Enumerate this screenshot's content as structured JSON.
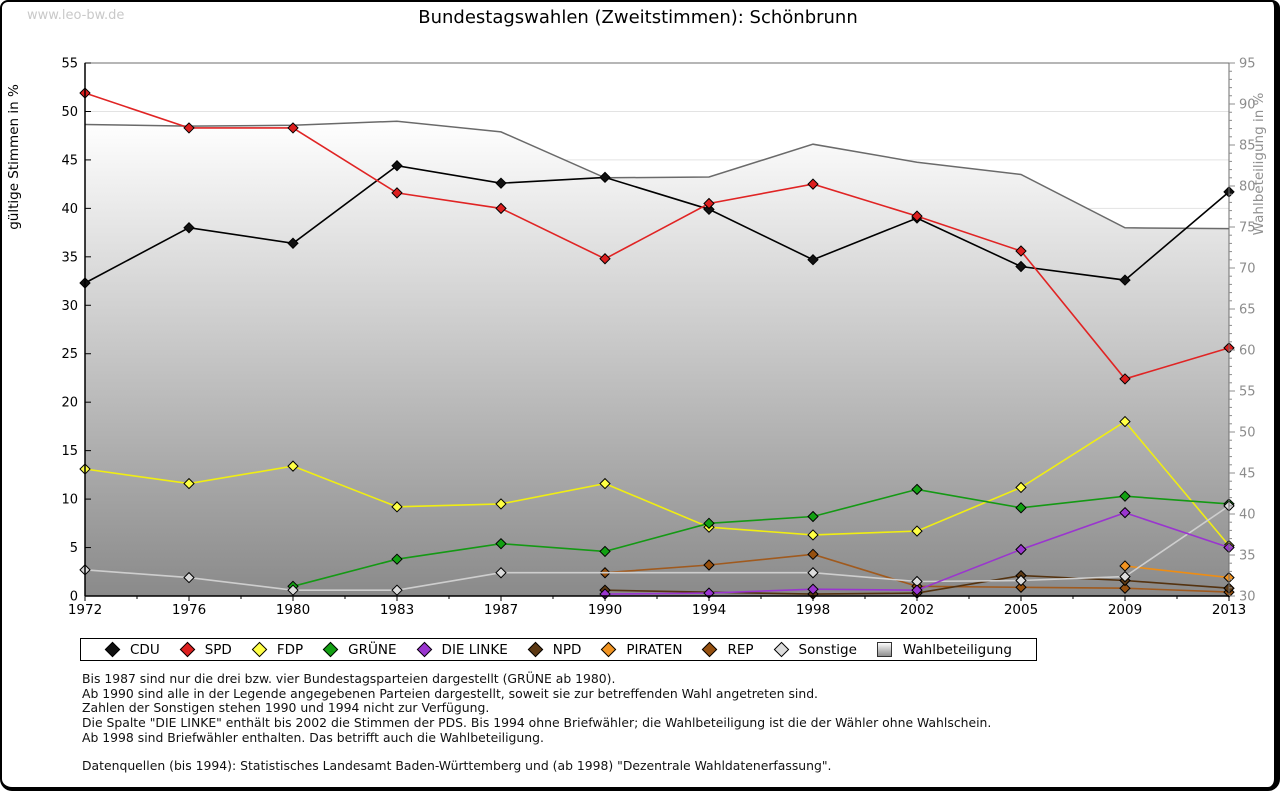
{
  "page": {
    "watermark": "www.leo-bw.de",
    "title": "Bundestagswahlen (Zweitstimmen): Schönbrunn"
  },
  "footnotes": [
    "Bis 1987 sind nur die drei bzw. vier Bundestagsparteien dargestellt (GRÜNE ab 1980).",
    "Ab 1990 sind alle in der Legende angegebenen Parteien dargestellt, soweit sie zur betreffenden Wahl angetreten sind.",
    "Zahlen der Sonstigen stehen 1990 und 1994 nicht zur Verfügung.",
    "Die Spalte \"DIE LINKE\" enthält bis 2002 die Stimmen der PDS. Bis 1994 ohne Briefwähler; die Wahlbeteiligung ist die der Wähler ohne Wahlschein.",
    "Ab 1998 sind Briefwähler enthalten. Das betrifft auch die Wahlbeteiligung."
  ],
  "datasource": "Datenquellen (bis 1994): Statistisches Landesamt Baden-Württemberg und (ab 1998) \"Dezentrale Wahldatenerfassung\".",
  "chart_data": {
    "type": "line",
    "title": "Bundestagswahlen (Zweitstimmen): Schönbrunn",
    "categories": [
      "1972",
      "1976",
      "1980",
      "1983",
      "1987",
      "1990",
      "1994",
      "1998",
      "2002",
      "2005",
      "2009",
      "2013"
    ],
    "y_left": {
      "label": "gültige Stimmen in %",
      "min": 0,
      "max": 55,
      "tick": 5
    },
    "y_right": {
      "label": "Wahlbeteiligung in %",
      "min": 30,
      "max": 95,
      "tick": 5
    },
    "grid": true,
    "legend_position": "bottom",
    "grid_color": "#e3e3e3",
    "area_gradient": [
      "#ffffff",
      "#8a8a8a"
    ],
    "series": [
      {
        "name": "CDU",
        "axis": "left",
        "z": 9,
        "color": "#000000",
        "fill": "#111111",
        "values": [
          32.3,
          38.0,
          36.4,
          44.4,
          42.6,
          43.2,
          39.9,
          34.7,
          39.0,
          34.0,
          32.6,
          41.7
        ]
      },
      {
        "name": "SPD",
        "axis": "left",
        "z": 10,
        "color": "#e02424",
        "fill": "#dd1f1f",
        "values": [
          51.9,
          48.3,
          48.3,
          41.6,
          40.0,
          34.8,
          40.5,
          42.5,
          39.2,
          35.6,
          22.4,
          25.6
        ]
      },
      {
        "name": "FDP",
        "axis": "left",
        "z": 5,
        "color": "#f0ee12",
        "fill": "#ffff45",
        "values": [
          13.1,
          11.6,
          13.4,
          9.2,
          9.5,
          11.6,
          7.1,
          6.3,
          6.7,
          11.2,
          18.0,
          5.2
        ]
      },
      {
        "name": "GRÜNE",
        "axis": "left",
        "z": 6,
        "color": "#149914",
        "fill": "#12a012",
        "values": [
          null,
          null,
          1.0,
          3.8,
          5.4,
          4.6,
          7.5,
          8.2,
          11.0,
          9.1,
          10.3,
          9.5
        ]
      },
      {
        "name": "DIE LINKE",
        "axis": "left",
        "z": 8,
        "color": "#9a35cf",
        "fill": "#9a35cf",
        "values": [
          null,
          null,
          null,
          null,
          null,
          0.2,
          0.3,
          0.7,
          0.6,
          4.8,
          8.6,
          5.0
        ]
      },
      {
        "name": "NPD",
        "axis": "left",
        "z": 3,
        "color": "#54320f",
        "fill": "#5d3913",
        "values": [
          null,
          null,
          null,
          null,
          null,
          0.6,
          null,
          0.2,
          0.3,
          2.1,
          1.6,
          0.8
        ]
      },
      {
        "name": "PIRATEN",
        "axis": "left",
        "z": 4,
        "color": "#ee8d14",
        "fill": "#f19422",
        "values": [
          null,
          null,
          null,
          null,
          null,
          null,
          null,
          null,
          null,
          null,
          3.1,
          1.9
        ]
      },
      {
        "name": "REP",
        "axis": "left",
        "z": 2,
        "color": "#a05a1e",
        "fill": "#96500f",
        "values": [
          null,
          null,
          null,
          null,
          null,
          2.4,
          3.2,
          4.3,
          1.0,
          0.9,
          0.8,
          0.4
        ]
      },
      {
        "name": "Sonstige",
        "axis": "left",
        "z": 7,
        "color": "#cecece",
        "fill": "#dcdcdc",
        "values": [
          2.7,
          1.9,
          0.6,
          0.6,
          2.4,
          null,
          null,
          2.4,
          1.5,
          1.6,
          2.0,
          9.3
        ]
      },
      {
        "name": "Wahlbeteiligung",
        "axis": "right",
        "z": 1,
        "type": "area",
        "color": "#6a6a6a",
        "fill": "#b5b5b5",
        "values": [
          87.5,
          87.3,
          87.4,
          87.9,
          86.6,
          81.0,
          81.1,
          85.1,
          82.9,
          81.4,
          74.9,
          74.8
        ]
      }
    ]
  }
}
